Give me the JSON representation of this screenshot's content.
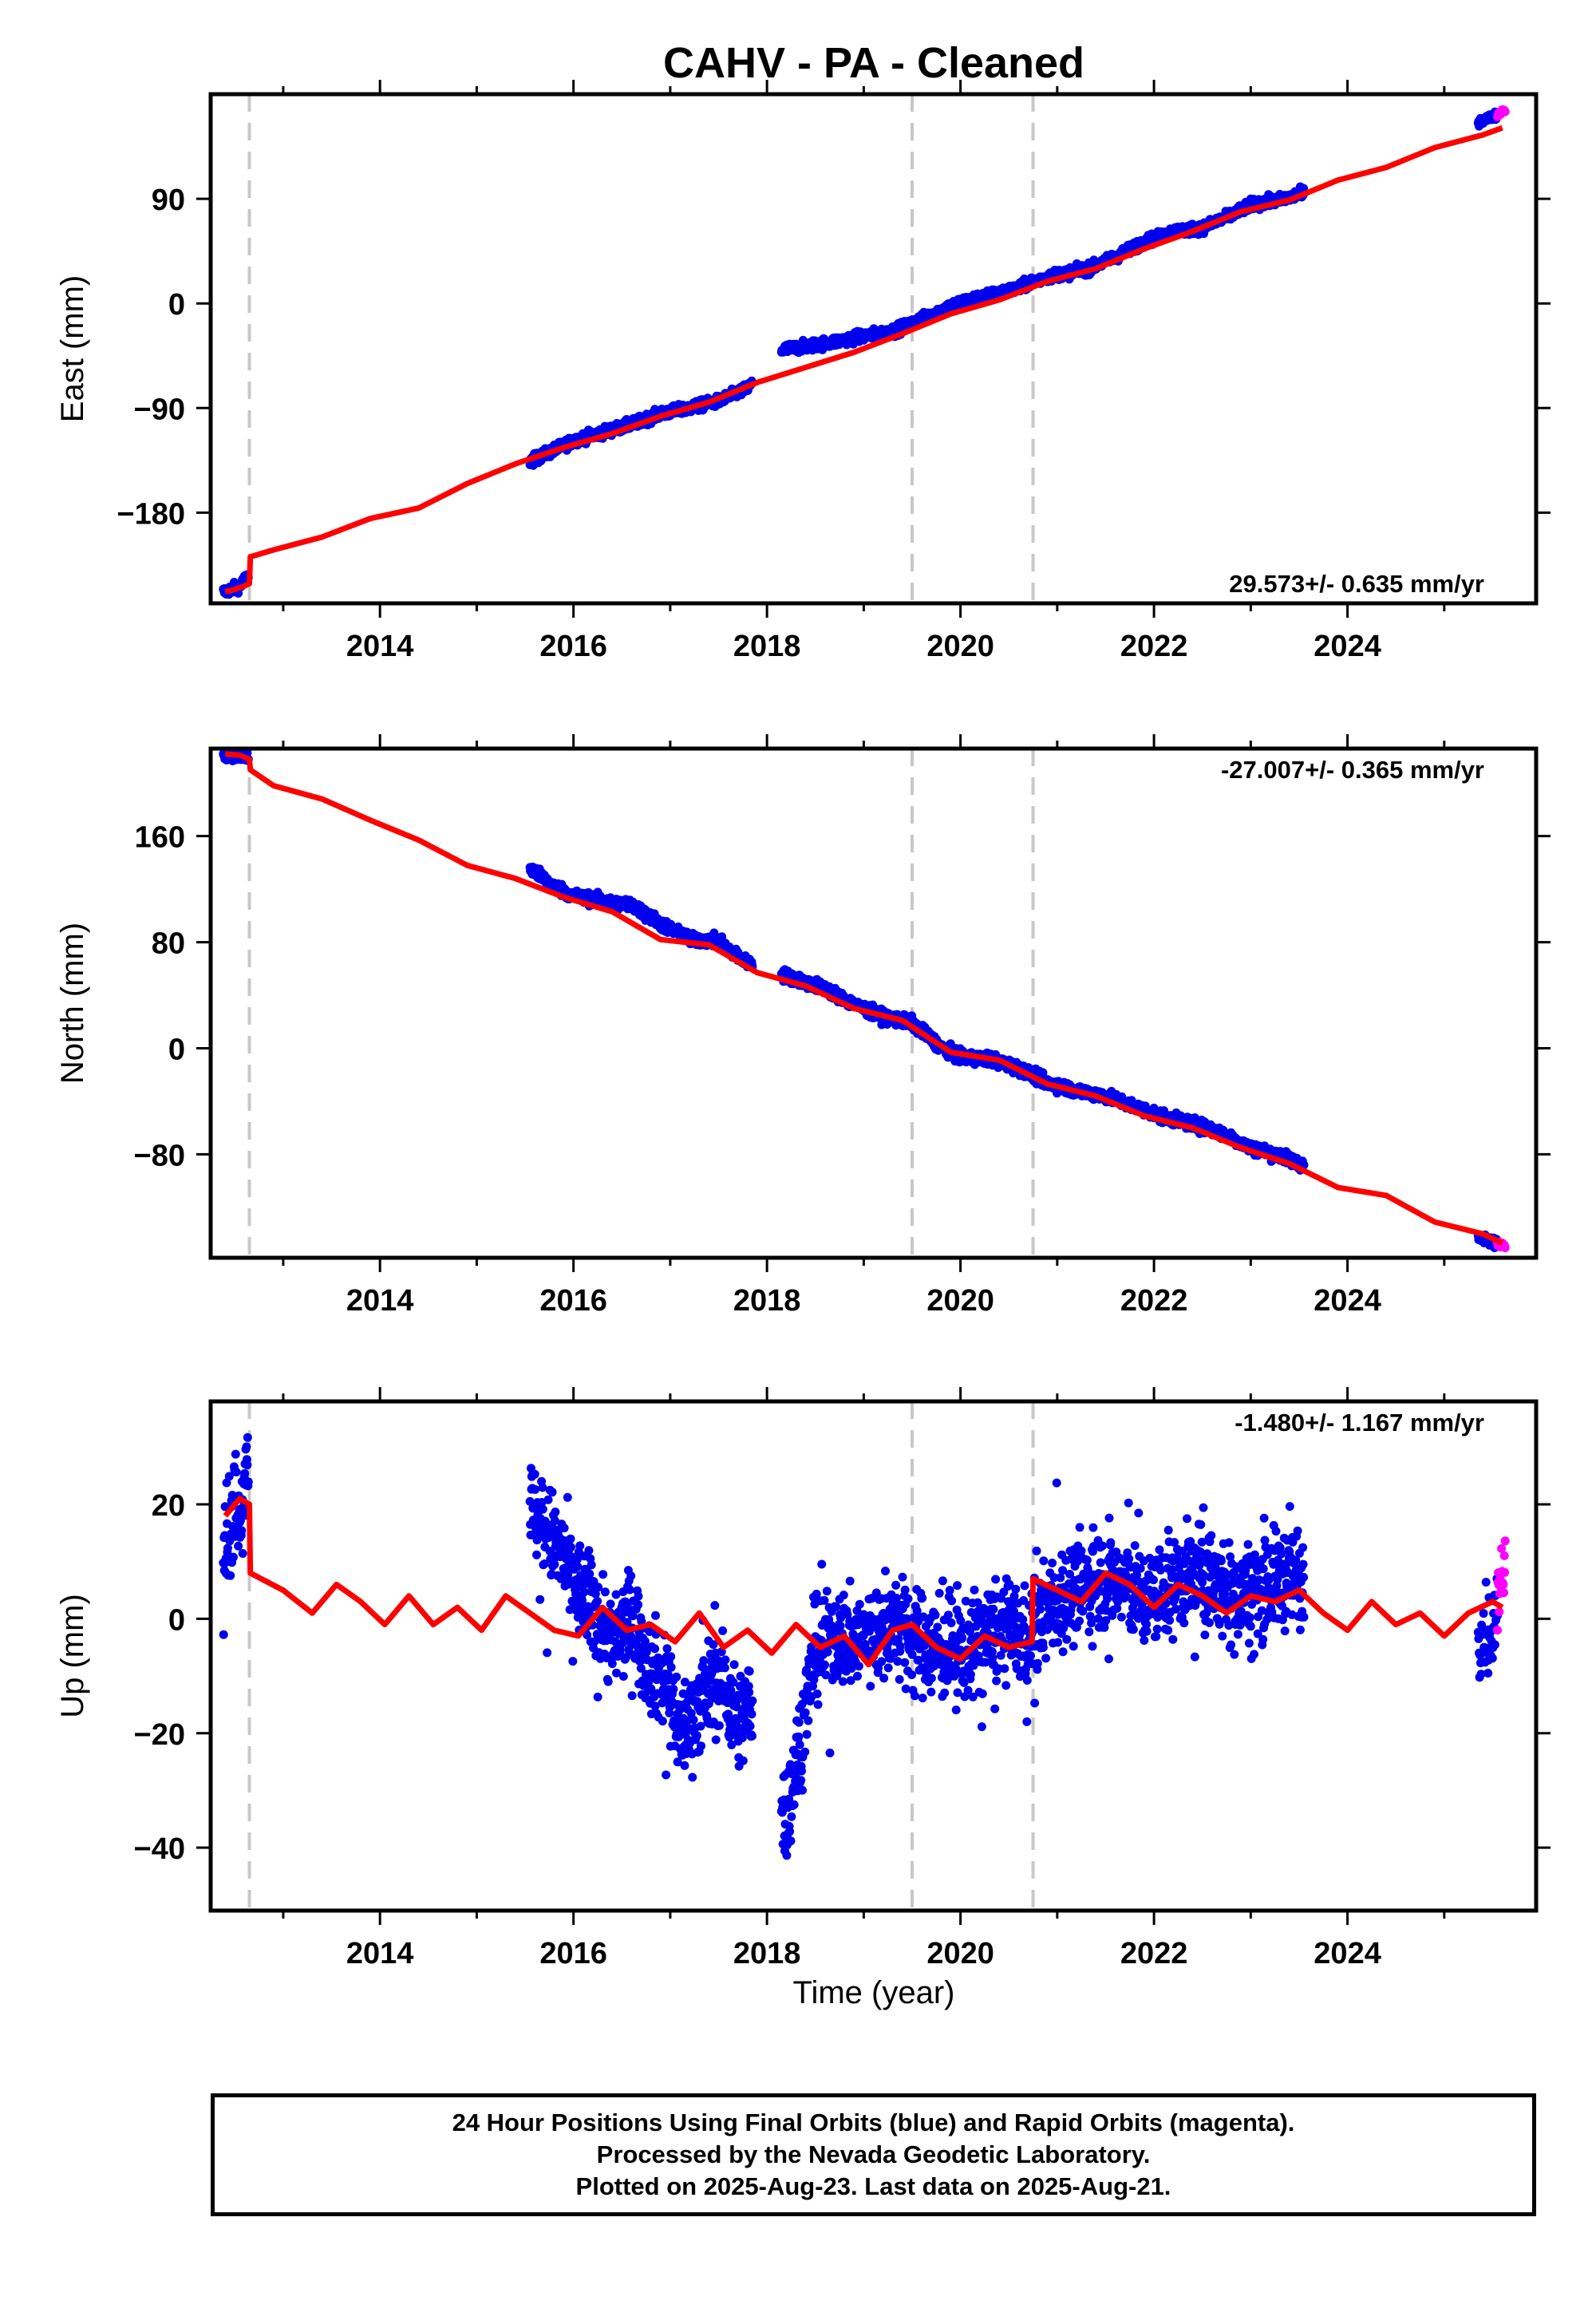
{
  "title": "CAHV  - PA - Cleaned",
  "xlabel": "Time (year)",
  "footer": {
    "line1": "24 Hour Positions Using Final Orbits (blue) and Rapid Orbits (magenta).",
    "line2": "Processed by the Nevada Geodetic Laboratory.",
    "line3": "Plotted on 2025-Aug-23. Last data on 2025-Aug-21."
  },
  "colors": {
    "final_orbits": "#0000ee",
    "rapid_orbits": "#ff00ff",
    "model": "#ff0000",
    "events": "#c8c8c8"
  },
  "chart_data": [
    {
      "type": "scatter",
      "ylabel": "East (mm)",
      "rate": "29.573+/- 0.635 mm/yr",
      "xlim": [
        2012.25,
        2025.95
      ],
      "ylim": [
        -258,
        180
      ],
      "x_ticks": [
        "2014",
        "2016",
        "2018",
        "2020",
        "2022",
        "2024"
      ],
      "y_ticks": [
        "90",
        "0",
        "-90",
        "-180"
      ],
      "y_tick_values": [
        90,
        0,
        -90,
        -180
      ],
      "events": [
        2012.65,
        2019.5,
        2020.75
      ],
      "series": [
        {
          "role": "final",
          "x": [
            2012.4,
            2012.55,
            2012.62,
            2015.55,
            2015.8,
            2016.0,
            2016.3,
            2016.6,
            2016.9,
            2017.2,
            2017.5,
            2017.8,
            2018.15,
            2018.4,
            2018.7,
            2019.0,
            2019.3,
            2019.5,
            2019.8,
            2020.0,
            2020.3,
            2020.6,
            2020.75,
            2021.0,
            2021.3,
            2021.6,
            2021.9,
            2022.2,
            2022.5,
            2022.8,
            2023.0,
            2023.3,
            2023.55
          ],
          "y": [
            -248,
            -243,
            -236,
            -136,
            -126,
            -118,
            -111,
            -104,
            -95,
            -90,
            -84,
            -73,
            -40,
            -37,
            -33,
            -28,
            -24,
            -17,
            -6,
            1,
            7,
            13,
            19,
            25,
            29,
            40,
            53,
            62,
            65,
            76,
            85,
            89,
            95
          ]
        },
        {
          "role": "rapid",
          "x": [
            2025.35,
            2025.45,
            2025.55,
            2025.6
          ],
          "y": [
            157,
            159,
            162,
            166
          ]
        },
        {
          "role": "model",
          "x": [
            2012.4,
            2012.5,
            2012.6,
            2012.65,
            2012.66,
            2012.9,
            2013.4,
            2013.9,
            2014.4,
            2014.9,
            2015.4,
            2015.9,
            2016.4,
            2016.9,
            2017.4,
            2017.9,
            2018.4,
            2018.9,
            2019.4,
            2019.9,
            2020.4,
            2020.9,
            2021.4,
            2021.9,
            2022.4,
            2022.9,
            2023.4,
            2023.9,
            2024.4,
            2024.9,
            2025.4,
            2025.6
          ],
          "y": [
            -248,
            -246,
            -243,
            -241,
            -218,
            -212,
            -201,
            -185,
            -176,
            -155,
            -138,
            -124,
            -112,
            -97,
            -85,
            -68,
            -55,
            -42,
            -26,
            -9,
            3,
            19,
            30,
            47,
            62,
            79,
            89,
            106,
            117,
            134,
            145,
            151
          ]
        }
      ],
      "rate_position": "bottom-right"
    },
    {
      "type": "scatter",
      "ylabel": "North (mm)",
      "rate": "-27.007+/- 0.365 mm/yr",
      "xlim": [
        2012.25,
        2025.95
      ],
      "ylim": [
        -158,
        226
      ],
      "x_ticks": [
        "2014",
        "2016",
        "2018",
        "2020",
        "2022",
        "2024"
      ],
      "y_ticks": [
        "160",
        "80",
        "0",
        "-80"
      ],
      "y_tick_values": [
        160,
        80,
        0,
        -80
      ],
      "events": [
        2012.65,
        2019.5,
        2020.75
      ],
      "series": [
        {
          "role": "final",
          "x": [
            2012.4,
            2012.55,
            2012.62,
            2015.55,
            2015.8,
            2016.0,
            2016.3,
            2016.6,
            2016.9,
            2017.2,
            2017.5,
            2017.75,
            2018.3,
            2018.6,
            2018.9,
            2019.2,
            2019.5,
            2019.8,
            2020.0,
            2020.3,
            2020.6,
            2020.9,
            2021.2,
            2021.5,
            2021.8,
            2022.1,
            2022.4,
            2022.7,
            2023.0,
            2023.3,
            2023.55
          ],
          "y": [
            222,
            221,
            219,
            136,
            122,
            115,
            111,
            108,
            94,
            82,
            81,
            66,
            52,
            45,
            33,
            24,
            19,
            1,
            -7,
            -8,
            -15,
            -26,
            -32,
            -36,
            -44,
            -52,
            -57,
            -64,
            -75,
            -81,
            -88
          ]
        },
        {
          "role": "rapid",
          "x": [
            2025.4,
            2025.5,
            2025.6
          ],
          "y": [
            -144,
            -146,
            -148
          ]
        },
        {
          "role": "model",
          "x": [
            2012.4,
            2012.55,
            2012.65,
            2012.66,
            2012.9,
            2013.4,
            2013.9,
            2014.4,
            2014.9,
            2015.4,
            2015.9,
            2016.4,
            2016.9,
            2017.4,
            2017.9,
            2018.4,
            2018.9,
            2019.4,
            2019.9,
            2020.4,
            2020.9,
            2021.4,
            2021.9,
            2022.4,
            2022.9,
            2023.4,
            2023.9,
            2024.4,
            2024.9,
            2025.4,
            2025.6
          ],
          "y": [
            222,
            221,
            218,
            210,
            198,
            188,
            172,
            157,
            138,
            128,
            114,
            103,
            82,
            78,
            57,
            47,
            30,
            21,
            -3,
            -9,
            -27,
            -36,
            -51,
            -60,
            -75,
            -87,
            -105,
            -111,
            -131,
            -140,
            -147
          ]
        }
      ],
      "rate_position": "top-right"
    },
    {
      "type": "scatter",
      "ylabel": "Up (mm)",
      "rate": "-1.480+/- 1.167 mm/yr",
      "xlim": [
        2012.25,
        2025.95
      ],
      "ylim": [
        -51,
        38
      ],
      "x_ticks": [
        "2014",
        "2016",
        "2018",
        "2020",
        "2022",
        "2024"
      ],
      "y_ticks": [
        "20",
        "0",
        "-20",
        "-40"
      ],
      "y_tick_values": [
        20,
        0,
        -20,
        -40
      ],
      "events": [
        2012.65,
        2019.5,
        2020.75
      ],
      "series": [
        {
          "role": "final",
          "x": [
            2012.4,
            2012.5,
            2012.6,
            2012.62,
            2015.55,
            2015.7,
            2015.85,
            2016.0,
            2016.2,
            2016.4,
            2016.6,
            2016.8,
            2017.0,
            2017.1,
            2017.3,
            2017.5,
            2017.7,
            2017.9,
            2018.2,
            2018.3,
            2018.5,
            2018.7,
            2018.9,
            2019.1,
            2019.3,
            2019.5,
            2019.7,
            2019.9,
            2020.1,
            2020.3,
            2020.5,
            2020.7,
            2020.9,
            2021.1,
            2021.3,
            2021.5,
            2021.7,
            2021.9,
            2022.1,
            2022.3,
            2022.5,
            2022.7,
            2022.9,
            2023.1,
            2023.3,
            2023.55
          ],
          "y": [
            15,
            18,
            22,
            30,
            20,
            16,
            12,
            6,
            2,
            -4,
            0,
            -8,
            -12,
            -20,
            -15,
            -10,
            -18,
            -14,
            -35,
            -25,
            -6,
            -3,
            -4,
            -2,
            -1,
            -3,
            -5,
            -6,
            -5,
            -3,
            -2,
            -4,
            2,
            4,
            6,
            7,
            6,
            3,
            5,
            7,
            8,
            5,
            4,
            6,
            7,
            8
          ]
        },
        {
          "role": "rapid",
          "x": [
            2025.5,
            2025.55,
            2025.6,
            2025.62
          ],
          "y": [
            -2,
            2,
            8,
            12
          ]
        },
        {
          "role": "model",
          "x": [
            2012.4,
            2012.55,
            2012.65,
            2012.66,
            2013.0,
            2013.3,
            2013.55,
            2013.8,
            2014.05,
            2014.3,
            2014.55,
            2014.8,
            2015.05,
            2015.3,
            2015.55,
            2015.8,
            2016.05,
            2016.3,
            2016.55,
            2016.8,
            2017.05,
            2017.3,
            2017.55,
            2017.8,
            2018.05,
            2018.3,
            2018.55,
            2018.8,
            2019.05,
            2019.3,
            2019.5,
            2019.75,
            2020.0,
            2020.25,
            2020.5,
            2020.74,
            2020.75,
            2021.0,
            2021.25,
            2021.5,
            2021.75,
            2022.0,
            2022.25,
            2022.5,
            2022.75,
            2023.0,
            2023.25,
            2023.5,
            2023.75,
            2024.0,
            2024.25,
            2024.5,
            2024.75,
            2025.0,
            2025.25,
            2025.5,
            2025.6
          ],
          "y": [
            18,
            21,
            20,
            8,
            5,
            1,
            6,
            3,
            -1,
            4,
            -1,
            2,
            -2,
            4,
            1,
            -2,
            -3,
            2,
            -2,
            -1,
            -4,
            1,
            -5,
            -2,
            -6,
            -1,
            -5,
            -3,
            -8,
            -2,
            -1,
            -5,
            -7,
            -3,
            -5,
            -4,
            7,
            5,
            3,
            8,
            6,
            2,
            6,
            4,
            1,
            4,
            3,
            5,
            1,
            -2,
            3,
            -1,
            1,
            -3,
            1,
            3,
            2
          ]
        }
      ],
      "rate_position": "top-right"
    }
  ]
}
